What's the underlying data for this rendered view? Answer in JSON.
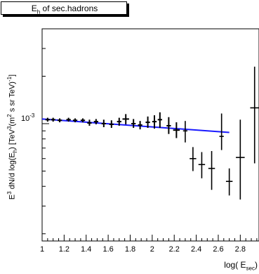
{
  "chart_data": {
    "type": "scatter",
    "title": "E_h of sec.hadrons",
    "title_main": "E",
    "title_sub": "h",
    "title_rest": " of sec.hadrons",
    "xlabel": "log( E_sec )",
    "xlabel_main": "log( E",
    "xlabel_sub": "sec",
    "xlabel_end": ")",
    "ylabel": "E³ dN/d log(E_h)  [TeV³(m² s sr TeV)⁻¹]",
    "ylabel_main": "E",
    "ylabel_sup1": "3",
    "ylabel_mid": " dN/d log(E",
    "ylabel_sub": "h",
    "ylabel_mid2": ")  [TeV",
    "ylabel_sup2": "3",
    "ylabel_mid3": "(m",
    "ylabel_sup3": "2",
    "ylabel_end": " s sr TeV)",
    "ylabel_sup4": "-1",
    "ylabel_close": "]",
    "y_scale": "log",
    "xlim": [
      1.0,
      2.97
    ],
    "ylim": [
      0.00018,
      0.004
    ],
    "x_ticks": [
      "1",
      "1.2",
      "1.4",
      "1.6",
      "1.8",
      "2",
      "2.2",
      "2.4",
      "2.6",
      "2.8"
    ],
    "x_tick_values": [
      1.0,
      1.2,
      1.4,
      1.6,
      1.8,
      2.0,
      2.2,
      2.4,
      2.6,
      2.8
    ],
    "y_tick_label_base": "10",
    "y_tick_label_exp": "-3",
    "y_tick_value": 0.001,
    "fit_color": "#1a1aff",
    "point_color": "#000000",
    "fit_line": {
      "x": [
        1.0,
        2.7
      ],
      "y": [
        0.00107,
        0.00088
      ]
    },
    "points": [
      {
        "x": 1.05,
        "y": 0.00106,
        "xerr": 0.02,
        "ylo": 0.00103,
        "yhi": 0.00109
      },
      {
        "x": 1.1,
        "y": 0.00106,
        "xerr": 0.02,
        "ylo": 0.00103,
        "yhi": 0.00109
      },
      {
        "x": 1.16,
        "y": 0.00105,
        "xerr": 0.02,
        "ylo": 0.00102,
        "yhi": 0.00108
      },
      {
        "x": 1.24,
        "y": 0.00106,
        "xerr": 0.02,
        "ylo": 0.00103,
        "yhi": 0.00109
      },
      {
        "x": 1.3,
        "y": 0.00105,
        "xerr": 0.02,
        "ylo": 0.00102,
        "yhi": 0.00108
      },
      {
        "x": 1.37,
        "y": 0.00105,
        "xerr": 0.02,
        "ylo": 0.00102,
        "yhi": 0.00108
      },
      {
        "x": 1.43,
        "y": 0.00101,
        "xerr": 0.02,
        "ylo": 0.00097,
        "yhi": 0.00106
      },
      {
        "x": 1.49,
        "y": 0.00103,
        "xerr": 0.02,
        "ylo": 0.00099,
        "yhi": 0.00107
      },
      {
        "x": 1.56,
        "y": 0.001,
        "xerr": 0.02,
        "ylo": 0.00095,
        "yhi": 0.00106
      },
      {
        "x": 1.63,
        "y": 0.00099,
        "xerr": 0.02,
        "ylo": 0.00094,
        "yhi": 0.00105
      },
      {
        "x": 1.7,
        "y": 0.00103,
        "xerr": 0.02,
        "ylo": 0.00097,
        "yhi": 0.00109
      },
      {
        "x": 1.76,
        "y": 0.00107,
        "xerr": 0.03,
        "ylo": 0.00099,
        "yhi": 0.00115
      },
      {
        "x": 1.83,
        "y": 0.001,
        "xerr": 0.02,
        "ylo": 0.00094,
        "yhi": 0.00107
      },
      {
        "x": 1.89,
        "y": 0.00098,
        "xerr": 0.02,
        "ylo": 0.00092,
        "yhi": 0.00104
      },
      {
        "x": 1.96,
        "y": 0.00102,
        "xerr": 0.02,
        "ylo": 0.00094,
        "yhi": 0.00111
      },
      {
        "x": 2.02,
        "y": 0.00103,
        "xerr": 0.02,
        "ylo": 0.00093,
        "yhi": 0.00113
      },
      {
        "x": 2.07,
        "y": 0.00106,
        "xerr": 0.02,
        "ylo": 0.00094,
        "yhi": 0.00118
      },
      {
        "x": 2.15,
        "y": 0.00097,
        "xerr": 0.02,
        "ylo": 0.00086,
        "yhi": 0.0011
      },
      {
        "x": 2.22,
        "y": 0.00091,
        "xerr": 0.03,
        "ylo": 0.00081,
        "yhi": 0.00102
      },
      {
        "x": 2.3,
        "y": 0.0009,
        "xerr": 0.02,
        "ylo": 0.00076,
        "yhi": 0.00104
      },
      {
        "x": 2.37,
        "y": 0.0006,
        "xerr": 0.03,
        "ylo": 0.0005,
        "yhi": 0.00071
      },
      {
        "x": 2.45,
        "y": 0.00055,
        "xerr": 0.03,
        "ylo": 0.00045,
        "yhi": 0.00066
      },
      {
        "x": 2.54,
        "y": 0.00052,
        "xerr": 0.03,
        "ylo": 0.00038,
        "yhi": 0.00067
      },
      {
        "x": 2.63,
        "y": 0.00083,
        "xerr": 0.02,
        "ylo": 0.00068,
        "yhi": 0.00116
      },
      {
        "x": 2.7,
        "y": 0.00043,
        "xerr": 0.03,
        "ylo": 0.00035,
        "yhi": 0.00052
      },
      {
        "x": 2.8,
        "y": 0.00061,
        "xerr": 0.04,
        "ylo": 0.00033,
        "yhi": 0.00106
      },
      {
        "x": 2.93,
        "y": 0.00126,
        "xerr": 0.04,
        "ylo": 0.00056,
        "yhi": 0.0023
      }
    ]
  }
}
